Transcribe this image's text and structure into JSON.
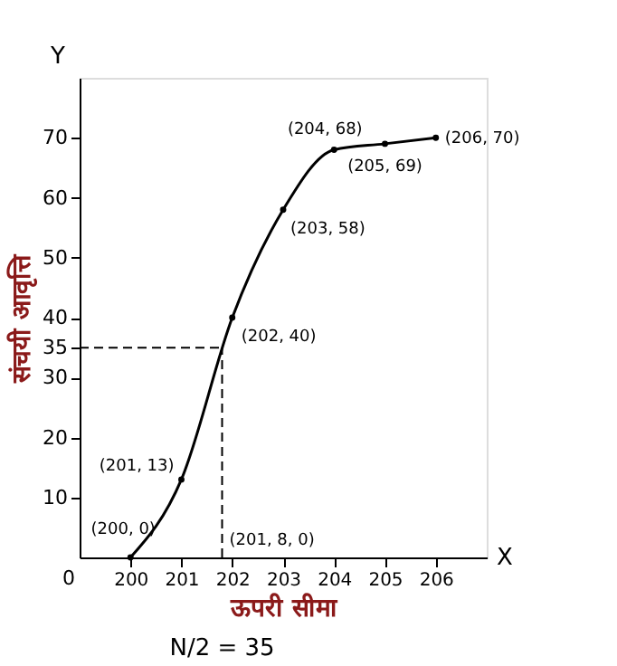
{
  "chart_data": {
    "type": "line",
    "xlabel": "ऊपरी सीमा",
    "ylabel": "संचयी आवृत्ति",
    "x": [
      200,
      201,
      202,
      203,
      204,
      205,
      206
    ],
    "series": [
      {
        "color": "#000000",
        "values": [
          0,
          13,
          40,
          58,
          68,
          69,
          70
        ]
      }
    ],
    "xlim": [
      199,
      207
    ],
    "xticks": [
      200,
      201,
      202,
      203,
      204,
      205,
      206
    ],
    "ylim": [
      0,
      80
    ],
    "yticks": [
      10,
      20,
      30,
      35,
      40,
      50,
      60,
      70
    ],
    "ref_lines": [
      {
        "axis": "y",
        "value": 35,
        "line_style": "dashed",
        "color": "#000000"
      },
      {
        "axis": "x",
        "value": 201.8,
        "line_style": "dashed",
        "color": "#000000"
      }
    ],
    "marker": "circle",
    "grid": false,
    "annotations": [
      "Y",
      "X",
      "N/2 = 35",
      "0",
      {
        "text": "(200, 0)",
        "x": 200,
        "y": 0
      },
      {
        "text": "(201, 13)",
        "x": 201,
        "y": 13
      },
      {
        "text": "(201, 8, 0)",
        "x": 201.8,
        "y": 0
      },
      {
        "text": "(202, 40)",
        "x": 202,
        "y": 40
      },
      {
        "text": "(203, 58)",
        "x": 203,
        "y": 58
      },
      {
        "text": "(204, 68)",
        "x": 204,
        "y": 68
      },
      {
        "text": "(205, 69)",
        "x": 205,
        "y": 69
      },
      {
        "text": "(206, 70)",
        "x": 206,
        "y": 70
      }
    ]
  }
}
